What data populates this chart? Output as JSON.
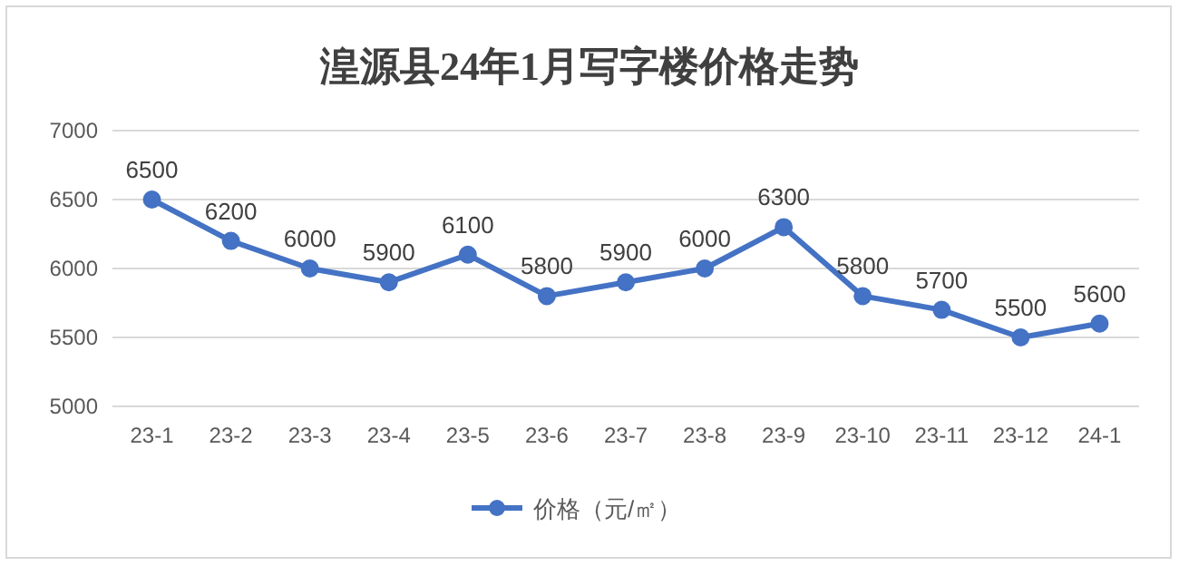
{
  "chart_data": {
    "type": "line",
    "title": "湟源县24年1月写字楼价格走势",
    "categories": [
      "23-1",
      "23-2",
      "23-3",
      "23-4",
      "23-5",
      "23-6",
      "23-7",
      "23-8",
      "23-9",
      "23-10",
      "23-11",
      "23-12",
      "24-1"
    ],
    "series": [
      {
        "name": "价格（元/㎡）",
        "color": "#4472c4",
        "values": [
          6500,
          6200,
          6000,
          5900,
          6100,
          5800,
          5900,
          6000,
          6300,
          5800,
          5700,
          5500,
          5600
        ]
      }
    ],
    "ylim": [
      5000,
      7000
    ],
    "yticks": [
      5000,
      5500,
      6000,
      6500,
      7000
    ],
    "grid": "y",
    "legend": "bottom",
    "marker": "circle",
    "line_style": "solid",
    "data_labels": true
  }
}
